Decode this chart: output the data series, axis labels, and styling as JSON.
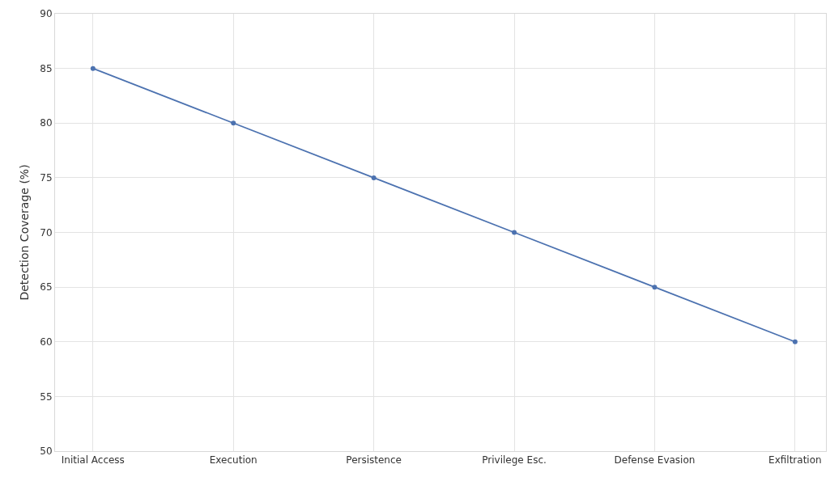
{
  "chart_data": {
    "type": "line",
    "ylabel": "Detection Coverage (%)",
    "categories": [
      "Initial Access",
      "Execution",
      "Persistence",
      "Privilege Esc.",
      "Defense Evasion",
      "Exfiltration"
    ],
    "series": [
      {
        "color": "#4c72b0",
        "values": [
          85,
          80,
          75,
          70,
          65,
          60
        ]
      }
    ],
    "ylim": [
      50,
      90
    ],
    "yticks": [
      50,
      55,
      60,
      65,
      70,
      75,
      80,
      85,
      90
    ],
    "grid": true,
    "marker": "circle",
    "line_style": "solid",
    "legend": false
  }
}
